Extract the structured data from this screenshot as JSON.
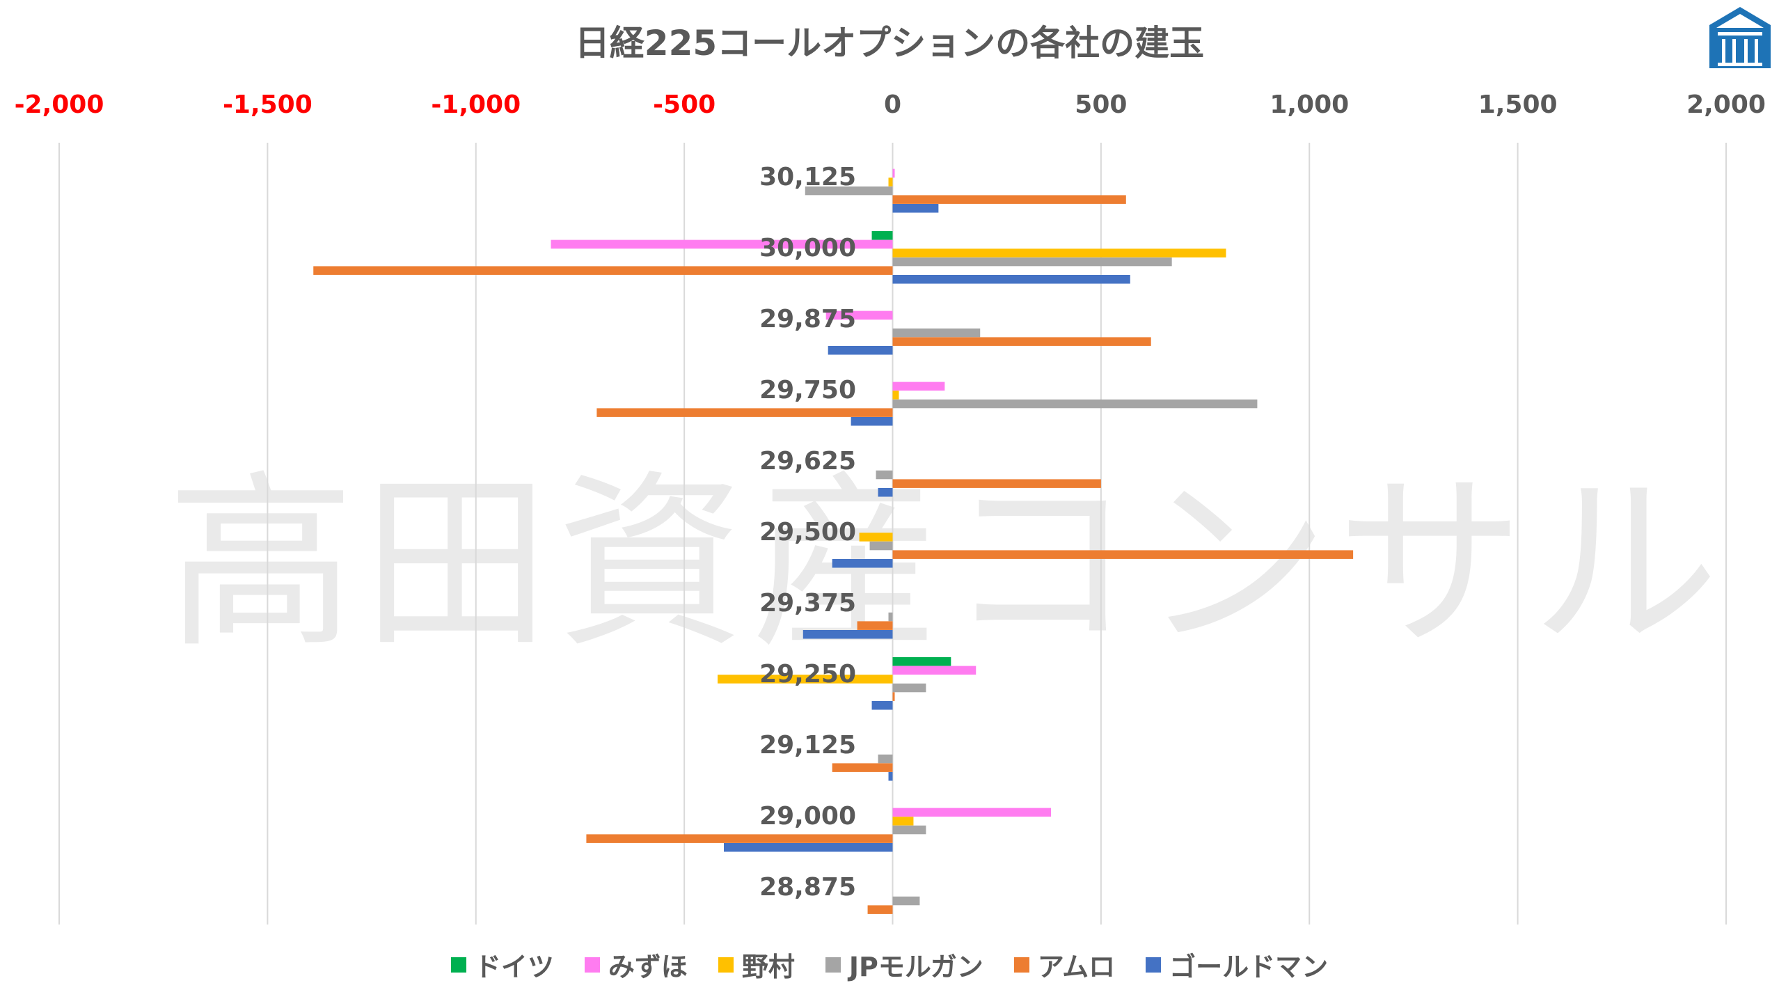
{
  "chart_data": {
    "type": "bar",
    "orientation": "horizontal",
    "title": "日経225コールオプションの各社の建玉",
    "xlabel": "",
    "ylabel": "",
    "xlim": [
      -2000,
      2000
    ],
    "xticks": [
      "-2,000",
      "-1,500",
      "-1,000",
      "-500",
      "0",
      "500",
      "1,000",
      "1,500",
      "2,000"
    ],
    "xtick_values": [
      -2000,
      -1500,
      -1000,
      -500,
      0,
      500,
      1000,
      1500,
      2000
    ],
    "negative_tick_color": "#ff0000",
    "positive_tick_color": "#595959",
    "grid": true,
    "legend_position": "bottom",
    "categories": [
      "30,125",
      "30,000",
      "29,875",
      "29,750",
      "29,625",
      "29,500",
      "29,375",
      "29,250",
      "29,125",
      "29,000",
      "28,875"
    ],
    "series": [
      {
        "name": "ドイツ",
        "color": "#00b050",
        "values": [
          0,
          -50,
          0,
          0,
          0,
          0,
          0,
          140,
          0,
          0,
          0
        ]
      },
      {
        "name": "みずほ",
        "color": "#ff7cf0",
        "values": [
          5,
          -820,
          -160,
          125,
          0,
          0,
          0,
          200,
          0,
          380,
          0
        ]
      },
      {
        "name": "野村",
        "color": "#ffc000",
        "values": [
          -10,
          800,
          0,
          15,
          0,
          -80,
          0,
          -420,
          0,
          50,
          0
        ]
      },
      {
        "name": "JPモルガン",
        "color": "#a5a5a5",
        "values": [
          -210,
          670,
          210,
          875,
          -40,
          -55,
          -10,
          80,
          -35,
          80,
          65
        ]
      },
      {
        "name": "アムロ",
        "color": "#ed7d31",
        "values": [
          560,
          -1390,
          620,
          -710,
          500,
          1105,
          -85,
          5,
          -145,
          -735,
          -60
        ]
      },
      {
        "name": "ゴールドマン",
        "color": "#4472c4",
        "values": [
          110,
          570,
          -155,
          -100,
          -35,
          -145,
          -215,
          -50,
          -10,
          -405,
          0
        ]
      }
    ]
  },
  "watermark": "高田資産コンサル",
  "logo": {
    "icon": "house-logo-icon",
    "color": "#1e73b6"
  }
}
